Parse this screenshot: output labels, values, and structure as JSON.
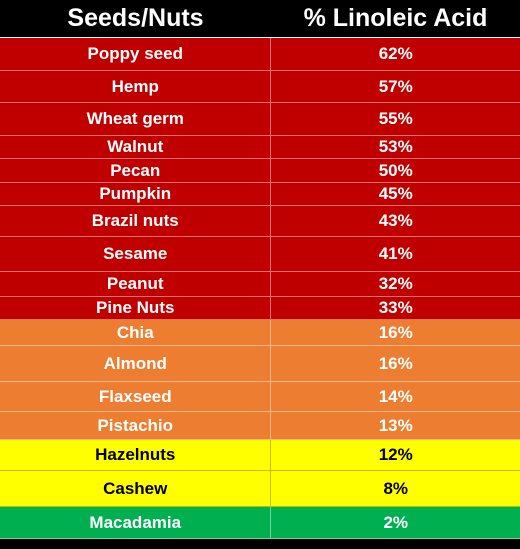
{
  "header": {
    "col1": "Seeds/Nuts",
    "col2": "% Linoleic Acid"
  },
  "rows": [
    {
      "name": "Poppy seed",
      "value": "62%",
      "color": "red",
      "h": 33
    },
    {
      "name": "Hemp",
      "value": "57%",
      "color": "red",
      "h": 32
    },
    {
      "name": "Wheat germ",
      "value": "55%",
      "color": "red",
      "h": 33
    },
    {
      "name": "Walnut",
      "value": "53%",
      "color": "red",
      "h": 23
    },
    {
      "name": "Pecan",
      "value": "50%",
      "color": "red",
      "h": 24
    },
    {
      "name": "Pumpkin",
      "value": "45%",
      "color": "red",
      "h": 23
    },
    {
      "name": "Brazil nuts",
      "value": "43%",
      "color": "red",
      "h": 31
    },
    {
      "name": "Sesame",
      "value": "41%",
      "color": "red",
      "h": 35
    },
    {
      "name": "Peanut",
      "value": "32%",
      "color": "red",
      "h": 25
    },
    {
      "name": "Pine Nuts",
      "value": "33%",
      "color": "red",
      "h": 23
    },
    {
      "name": "Chia",
      "value": "16%",
      "color": "orange",
      "h": 26
    },
    {
      "name": "Almond",
      "value": "16%",
      "color": "orange",
      "h": 36
    },
    {
      "name": "Flaxseed",
      "value": "14%",
      "color": "orange",
      "h": 30
    },
    {
      "name": "Pistachio",
      "value": "13%",
      "color": "orange",
      "h": 28
    },
    {
      "name": "Hazelnuts",
      "value": "12%",
      "color": "yellow",
      "h": 31
    },
    {
      "name": "Cashew",
      "value": "8%",
      "color": "yellow",
      "h": 36
    },
    {
      "name": "Macadamia",
      "value": "2%",
      "color": "green",
      "h": 32
    }
  ],
  "colors": {
    "red": "#c00000",
    "orange": "#ed7d31",
    "yellow": "#ffff00",
    "green": "#00b050",
    "header": "#000000"
  }
}
